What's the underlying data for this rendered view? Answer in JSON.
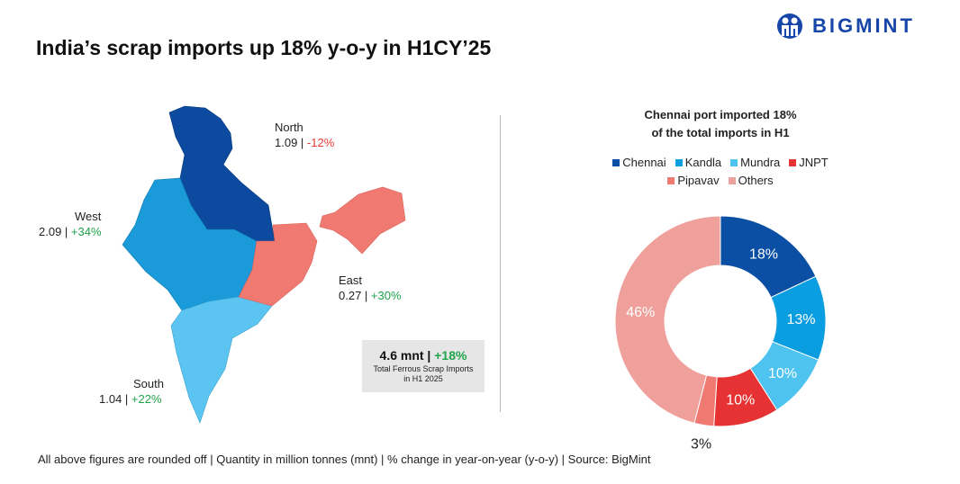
{
  "header": {
    "title": "India’s scrap imports up 18% y-o-y in H1CY’25",
    "logo_text": "BIGMINT"
  },
  "map": {
    "regions": [
      {
        "name": "North",
        "value": "1.09",
        "change": "-12%",
        "color": "#0b4a9e"
      },
      {
        "name": "West",
        "value": "2.09",
        "change": "+34%",
        "color": "#1a9ad8"
      },
      {
        "name": "East",
        "value": "0.27",
        "change": "+30%",
        "color": "#f07a72"
      },
      {
        "name": "South",
        "value": "1.04",
        "change": "+22%",
        "color": "#5bc4f0"
      }
    ],
    "total": {
      "value": "4.6 mnt",
      "change": "+18%",
      "line1": "Total Ferrous Scrap Imports",
      "line2": "in H1 2025"
    }
  },
  "chart_data": {
    "type": "pie",
    "title_line1": "Chennai port imported 18%",
    "title_line2": "of the total imports in H1",
    "legend_position": "top",
    "categories": [
      "Chennai",
      "Kandla",
      "Mundra",
      "JNPT",
      "Pipavav",
      "Others"
    ],
    "values": [
      18,
      13,
      10,
      10,
      3,
      46
    ],
    "labels": [
      "18%",
      "13%",
      "10%",
      "10%",
      "3%",
      "46%"
    ],
    "colors": [
      "#0a4fa3",
      "#0a9ee0",
      "#4fc3f0",
      "#e63232",
      "#f07a72",
      "#f0a09a"
    ],
    "donut": true
  },
  "footer": "All above figures are rounded off | Quantity in million tonnes (mnt) | % change in year-on-year (y-o-y) | Source: BigMint"
}
